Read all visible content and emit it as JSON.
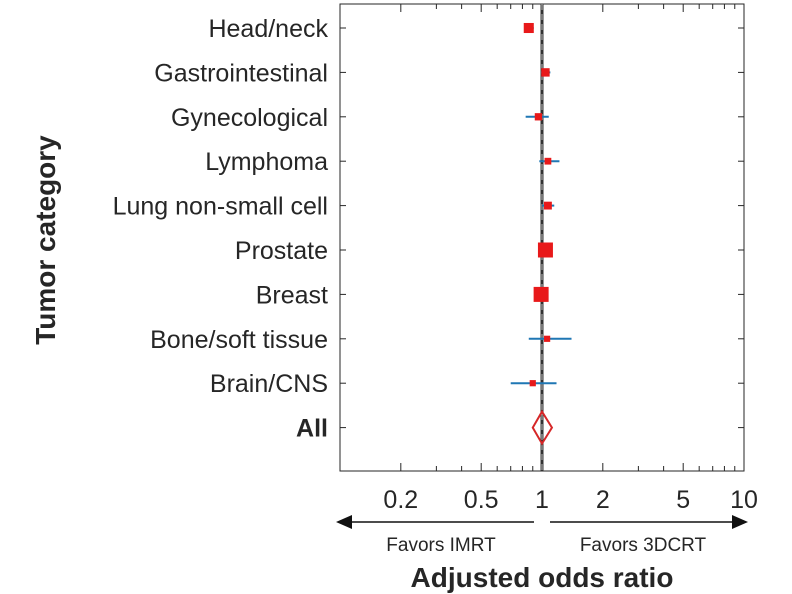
{
  "chart_data": {
    "type": "forest",
    "title": "",
    "xlabel": "Adjusted odds ratio",
    "ylabel": "Tumor category",
    "x_scale": "log",
    "xlim": [
      0.1,
      10
    ],
    "x_ticks": [
      0.2,
      0.5,
      1,
      2,
      5,
      10
    ],
    "x_tick_labels": [
      "0.2",
      "0.5",
      "1",
      "2",
      "5",
      "10"
    ],
    "reference_line": 1,
    "grid": false,
    "direction_labels": {
      "left": "Favors IMRT",
      "right": "Favors 3DCRT"
    },
    "colors": {
      "point": "#e8191a",
      "ci": "#1f77b4",
      "summary": "#d62728",
      "reference": "#333333",
      "text": "#262626"
    },
    "categories": [
      {
        "label": "Head/neck",
        "or": 0.86,
        "lo": 0.82,
        "hi": 0.91,
        "weight": 0.55
      },
      {
        "label": "Gastrointestinal",
        "or": 1.04,
        "lo": 0.99,
        "hi": 1.1,
        "weight": 0.4
      },
      {
        "label": "Gynecological",
        "or": 0.96,
        "lo": 0.83,
        "hi": 1.08,
        "weight": 0.3
      },
      {
        "label": "Lymphoma",
        "or": 1.07,
        "lo": 0.97,
        "hi": 1.22,
        "weight": 0.25
      },
      {
        "label": "Lung non-small cell",
        "or": 1.07,
        "lo": 1.0,
        "hi": 1.15,
        "weight": 0.35
      },
      {
        "label": "Prostate",
        "or": 1.04,
        "lo": 1.0,
        "hi": 1.08,
        "weight": 1.0
      },
      {
        "label": "Breast",
        "or": 0.99,
        "lo": 0.96,
        "hi": 1.03,
        "weight": 1.0
      },
      {
        "label": "Bone/soft tissue",
        "or": 1.06,
        "lo": 0.86,
        "hi": 1.4,
        "weight": 0.2
      },
      {
        "label": "Brain/CNS",
        "or": 0.9,
        "lo": 0.7,
        "hi": 1.18,
        "weight": 0.2
      }
    ],
    "summary": {
      "label": "All",
      "or": 1.0,
      "lo": 0.9,
      "hi": 1.12
    }
  }
}
